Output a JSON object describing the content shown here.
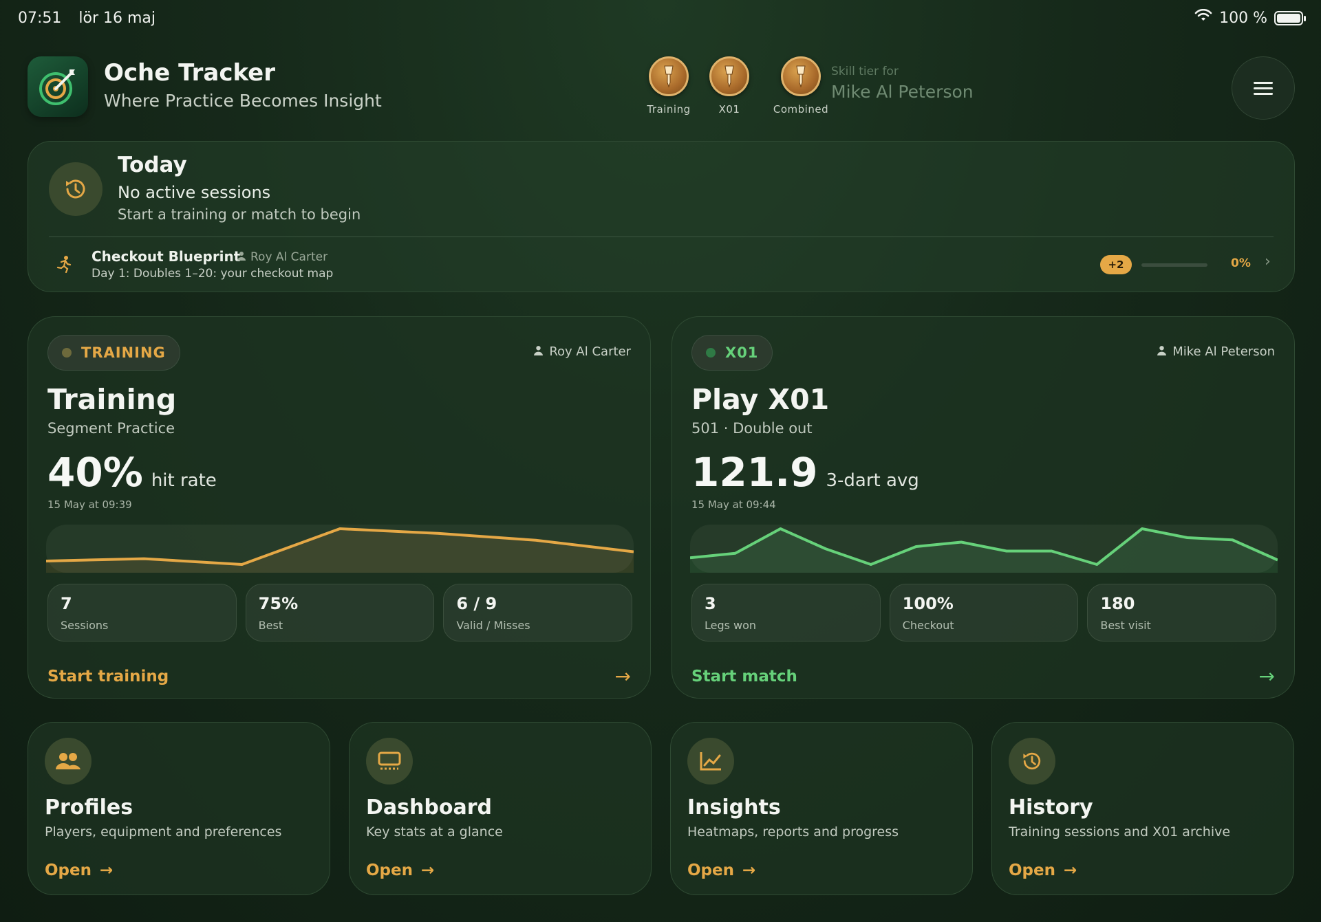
{
  "status": {
    "time": "07:51",
    "date": "lör 16 maj",
    "battery": "100 %"
  },
  "header": {
    "app_title": "Oche Tracker",
    "app_subtitle": "Where Practice Becomes Insight",
    "tiers": [
      {
        "label": "Training",
        "icon": "dart-medal-icon"
      },
      {
        "label": "X01",
        "icon": "dart-medal-icon"
      },
      {
        "label": "Combined",
        "icon": "dart-medal-icon"
      }
    ],
    "skill_for_label": "Skill tier for",
    "skill_player": "Mike Al Peterson",
    "menu_icon": "hamburger-menu-icon"
  },
  "today": {
    "title": "Today",
    "status": "No active sessions",
    "hint": "Start a training or match to begin",
    "blueprint": {
      "title": "Checkout Blueprint",
      "user": "Roy Al Carter",
      "subtitle": "Day 1: Doubles 1–20: your checkout map",
      "badge": "+2",
      "progress_pct": "0%",
      "progress": 0
    }
  },
  "training_card": {
    "pill": "TRAINING",
    "user": "Roy Al Carter",
    "title": "Training",
    "subtitle": "Segment Practice",
    "value": "40%",
    "unit": "hit rate",
    "date": "15 May at 09:39",
    "sparkline": [
      50,
      52,
      47,
      78,
      74,
      68,
      58
    ],
    "stats": [
      {
        "value": "7",
        "label": "Sessions"
      },
      {
        "value": "75%",
        "label": "Best"
      },
      {
        "value": "6 / 9",
        "label": "Valid / Misses"
      }
    ],
    "cta": "Start training",
    "color": "#e5a846"
  },
  "x01_card": {
    "pill": "X01",
    "user": "Mike Al Peterson",
    "title": "Play X01",
    "subtitle": "501 · Double out",
    "value": "121.9",
    "unit": "3-dart avg",
    "date": "15 May at 09:44",
    "sparkline": [
      115,
      117,
      128,
      119,
      112,
      120,
      122,
      118,
      118,
      112,
      128,
      124,
      123,
      114
    ],
    "stats": [
      {
        "value": "3",
        "label": "Legs won"
      },
      {
        "value": "100%",
        "label": "Checkout"
      },
      {
        "value": "180",
        "label": "Best visit"
      }
    ],
    "cta": "Start match",
    "color": "#66d17a"
  },
  "nav": [
    {
      "title": "Profiles",
      "desc": "Players, equipment and preferences",
      "open": "Open",
      "icon": "people-icon"
    },
    {
      "title": "Dashboard",
      "desc": "Key stats at a glance",
      "open": "Open",
      "icon": "dashboard-icon"
    },
    {
      "title": "Insights",
      "desc": "Heatmaps, reports and progress",
      "open": "Open",
      "icon": "chart-icon"
    },
    {
      "title": "History",
      "desc": "Training sessions and X01 archive",
      "open": "Open",
      "icon": "history-icon"
    }
  ]
}
